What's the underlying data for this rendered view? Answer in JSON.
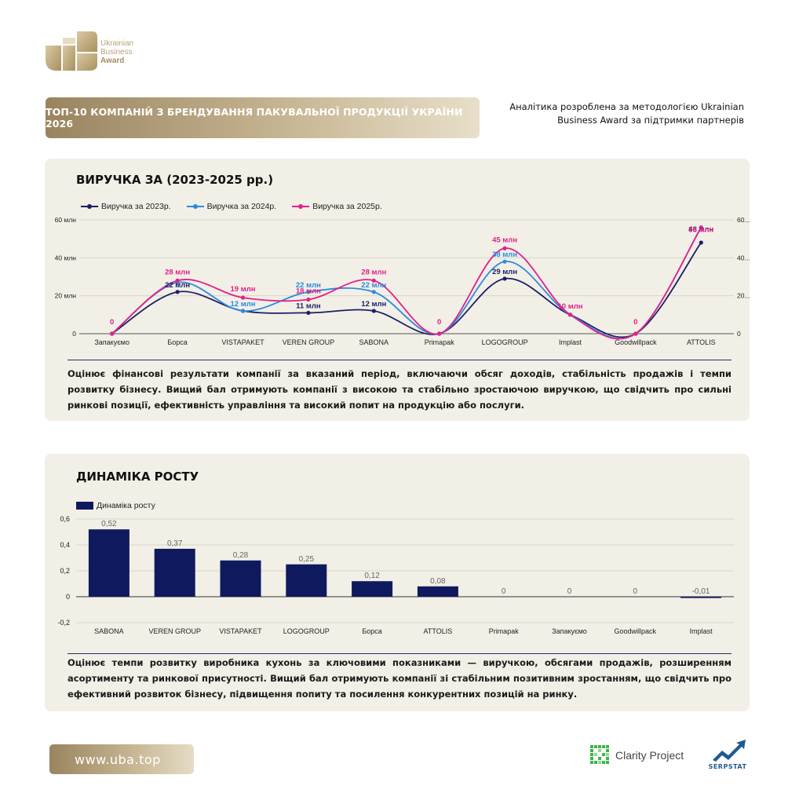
{
  "logo": {
    "line1": "Ukrainian",
    "line2": "Business",
    "line3": "Award"
  },
  "header": {
    "title": "ТОП-10 КОМПАНІЙ З БРЕНДУВАННЯ ПАКУВАЛЬНОЇ ПРОДУКЦІЇ УКРАЇНИ 2026",
    "note_line1": "Аналітика розроблена за методологією Ukrainian",
    "note_line2": "Business Award за підтримки партнерів"
  },
  "colors": {
    "series_2023": "#1c1f66",
    "series_2024": "#2a8be0",
    "series_2025": "#e0218a",
    "bar": "#0f1a5e",
    "gold": "#b59f76",
    "panel_bg": "#f2efe6"
  },
  "revenue_section": {
    "title": "ВИРУЧКА ЗА (2023-2025 рр.)",
    "description": "Оцінює фінансові результати компанії за вказаний період, включаючи обсяг доходів, стабільність продажів і темпи розвитку бізнесу. Вищий бал отримують компанії з високою та стабільно зростаючою виручкою, що свідчить про сильні ринкові позиції, ефективність управління та високий попит на продукцію або послуги."
  },
  "growth_section": {
    "title": "ДИНАМІКА РОСТУ",
    "description": "Оцінює темпи розвитку виробника кухонь за ключовими показниками — виручкою, обсягами продажів, розширенням асортименту та ринкової присутності. Вищий бал отримують компанії зі стабільним позитивним зростанням, що свідчить про ефективний розвиток бізнесу, підвищення попиту та посилення конкурентних позицій на ринку."
  },
  "footer": {
    "url": "www.uba.top",
    "partner1": "Clarity Project",
    "partner2": "SERPSTAT"
  },
  "chart_data": [
    {
      "type": "line",
      "categories": [
        "Запакуємо",
        "Борса",
        "VISTAPAKET",
        "VEREN GROUP",
        "SABONA",
        "Primapak",
        "LOGOGROUP",
        "Implast",
        "Goodwillpack",
        "ATTOLIS"
      ],
      "series": [
        {
          "name": "Виручка за 2023р.",
          "values": [
            0,
            22,
            12,
            11,
            12,
            0,
            29,
            10,
            0,
            48
          ],
          "labels": [
            "",
            "22 млн",
            "",
            "11 млн",
            "12 млн",
            "",
            "29 млн",
            "",
            "",
            "48 млн"
          ]
        },
        {
          "name": "Виручка за 2024р.",
          "values": [
            0,
            27,
            12,
            22,
            22,
            0,
            38,
            10,
            0,
            56
          ],
          "labels": [
            "",
            "",
            "12 млн",
            "22 млн",
            "22 млн",
            "",
            "38 млн",
            "",
            "",
            ""
          ]
        },
        {
          "name": "Виручка за 2025р.",
          "values": [
            0,
            28,
            19,
            18,
            28,
            0,
            45,
            10,
            0,
            56
          ],
          "labels": [
            "0",
            "28 млн",
            "19 млн",
            "18 млн",
            "28 млн",
            "0",
            "45 млн",
            "10 млн",
            "0",
            "56 млн"
          ]
        }
      ],
      "ylim": [
        0,
        60
      ],
      "yticks": [
        "0",
        "20 млн",
        "40 млн",
        "60 млн"
      ],
      "yticks_right": [
        "0",
        "20...",
        "40...",
        "60..."
      ],
      "legend_position": "top-left",
      "grid": true
    },
    {
      "type": "bar",
      "categories": [
        "SABONA",
        "VEREN GROUP",
        "VISTAPAKET",
        "LOGOGROUP",
        "Борса",
        "ATTOLIS",
        "Primapak",
        "Запакуємо",
        "Goodwillpack",
        "Implast"
      ],
      "series": [
        {
          "name": "Динаміка росту",
          "values": [
            0.52,
            0.37,
            0.28,
            0.25,
            0.12,
            0.08,
            0,
            0,
            0,
            -0.01
          ],
          "labels": [
            "0,52",
            "0,37",
            "0,28",
            "0,25",
            "0,12",
            "0,08",
            "0",
            "0",
            "0",
            "-0,01"
          ]
        }
      ],
      "ylim": [
        -0.2,
        0.6
      ],
      "yticks": [
        "-0,2",
        "0",
        "0,2",
        "0,4",
        "0,6"
      ],
      "legend_position": "top-left",
      "grid": true
    }
  ]
}
